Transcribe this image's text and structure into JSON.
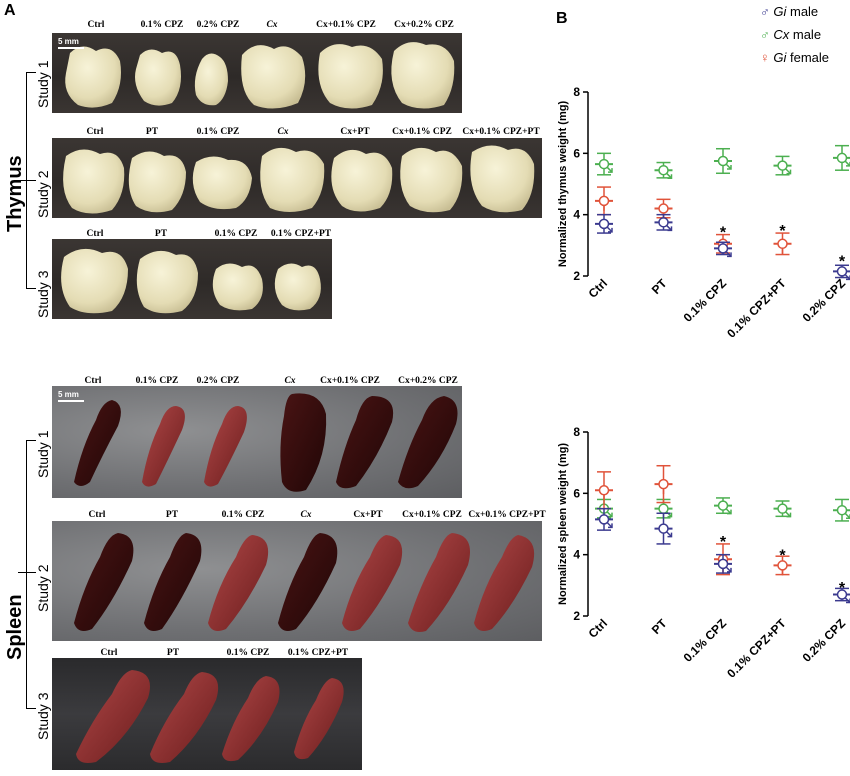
{
  "panel_a": {
    "letter": "A",
    "scale_bar": "5 mm",
    "organs": [
      "Thymus",
      "Spleen"
    ],
    "studies": [
      "Study 1",
      "Study 2",
      "Study 3"
    ],
    "study1_cols": [
      "Ctrl",
      "0.1% CPZ",
      "0.2% CPZ",
      "Cx",
      "Cx+0.1% CPZ",
      "Cx+0.2% CPZ"
    ],
    "study2_cols": [
      "Ctrl",
      "PT",
      "0.1% CPZ",
      "Cx",
      "Cx+PT",
      "Cx+0.1% CPZ",
      "Cx+0.1% CPZ+PT"
    ],
    "study3_cols": [
      "Ctrl",
      "PT",
      "0.1% CPZ",
      "0.1% CPZ+PT"
    ]
  },
  "panel_b": {
    "letter": "B",
    "legend": [
      {
        "symbol": "♂",
        "italic": "Gi",
        "rest": " male",
        "color": "#3b3a8f"
      },
      {
        "symbol": "♂",
        "italic": "Cx",
        "rest": " male",
        "color": "#4caf50"
      },
      {
        "symbol": "♀",
        "italic": "Gi",
        "rest": " female",
        "color": "#e0533a"
      }
    ]
  },
  "chart_data": [
    {
      "type": "scatter",
      "title": "",
      "ylabel": "Normalized thymus weight (mg)",
      "categories": [
        "Ctrl",
        "PT",
        "0.1% CPZ",
        "0.1% CPZ+PT",
        "0.2% CPZ"
      ],
      "ylim": [
        2,
        8
      ],
      "yticks": [
        2,
        4,
        6,
        8
      ],
      "series": [
        {
          "name": "Cx male",
          "color": "#4caf50",
          "values": [
            5.65,
            5.45,
            5.75,
            5.6,
            5.85
          ],
          "errors": [
            0.35,
            0.25,
            0.4,
            0.3,
            0.4
          ]
        },
        {
          "name": "Gi female",
          "color": "#e0533a",
          "values": [
            4.45,
            4.2,
            3.05,
            3.05,
            null
          ],
          "errors": [
            0.45,
            0.3,
            0.3,
            0.35,
            null
          ]
        },
        {
          "name": "Gi male",
          "color": "#3b3a8f",
          "values": [
            3.7,
            3.75,
            2.9,
            null,
            2.15
          ],
          "errors": [
            0.3,
            0.25,
            0.2,
            null,
            0.2
          ]
        }
      ],
      "significance": [
        {
          "category": "0.1% CPZ",
          "value": 3.45,
          "label": "*"
        },
        {
          "category": "0.1% CPZ+PT",
          "value": 3.5,
          "label": "*"
        },
        {
          "category": "0.2% CPZ",
          "value": 2.5,
          "label": "*"
        }
      ]
    },
    {
      "type": "scatter",
      "title": "",
      "ylabel": "Normalized spleen weight (mg)",
      "categories": [
        "Ctrl",
        "PT",
        "0.1% CPZ",
        "0.1% CPZ+PT",
        "0.2% CPZ"
      ],
      "ylim": [
        2,
        8
      ],
      "yticks": [
        2,
        4,
        6,
        8
      ],
      "series": [
        {
          "name": "Cx male",
          "color": "#4caf50",
          "values": [
            5.5,
            5.5,
            5.6,
            5.5,
            5.45
          ],
          "errors": [
            0.3,
            0.3,
            0.25,
            0.25,
            0.35
          ]
        },
        {
          "name": "Gi female",
          "color": "#e0533a",
          "values": [
            6.1,
            6.3,
            3.85,
            3.65,
            null
          ],
          "errors": [
            0.6,
            0.6,
            0.5,
            0.3,
            null
          ]
        },
        {
          "name": "Gi male",
          "color": "#3b3a8f",
          "values": [
            5.15,
            4.85,
            3.7,
            null,
            2.7
          ],
          "errors": [
            0.35,
            0.5,
            0.3,
            null,
            0.2
          ]
        }
      ],
      "significance": [
        {
          "category": "0.1% CPZ",
          "value": 4.45,
          "label": "*"
        },
        {
          "category": "0.1% CPZ+PT",
          "value": 4.0,
          "label": "*"
        },
        {
          "category": "0.2% CPZ",
          "value": 2.95,
          "label": "*"
        }
      ]
    }
  ]
}
